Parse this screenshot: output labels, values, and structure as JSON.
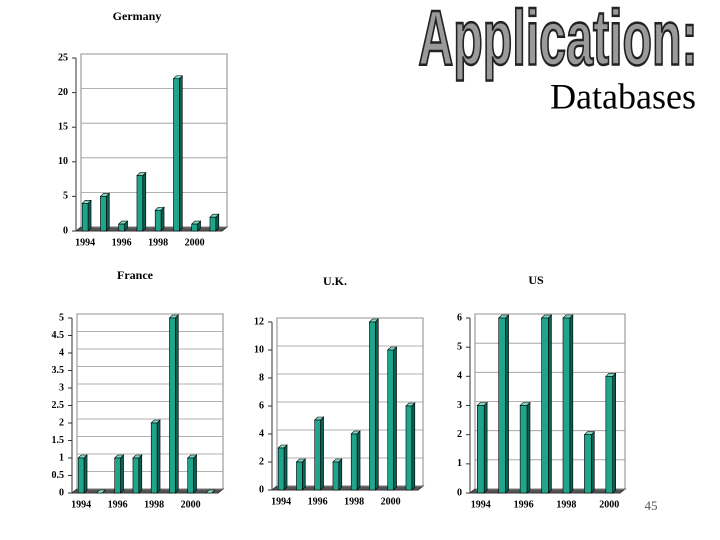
{
  "heading": "Application:",
  "subheading": "Databases",
  "page_number": "45",
  "chart_data": [
    {
      "type": "bar",
      "title": "Germany",
      "categories": [
        "1994",
        null,
        "1996",
        null,
        "1998",
        null,
        "2000",
        null
      ],
      "values": [
        4,
        5,
        1,
        8,
        3,
        22,
        1,
        2
      ],
      "color": "#1fa58c",
      "ylim": [
        0,
        25
      ],
      "yticks": [
        0,
        5,
        10,
        15,
        20,
        25
      ],
      "grid": true
    },
    {
      "type": "bar",
      "title": "France",
      "categories": [
        "1994",
        null,
        "1996",
        null,
        "1998",
        null,
        "2000",
        null
      ],
      "values": [
        1,
        0,
        1,
        1,
        2,
        5,
        1,
        0
      ],
      "color": "#1fa58c",
      "ylim": [
        0,
        5
      ],
      "yticks": [
        0,
        0.5,
        1,
        1.5,
        2,
        2.5,
        3,
        3.5,
        4,
        4.5,
        5
      ],
      "grid": true
    },
    {
      "type": "bar",
      "title": "U.K.",
      "categories": [
        "1994",
        null,
        "1996",
        null,
        "1998",
        null,
        "2000",
        null
      ],
      "values": [
        3,
        2,
        5,
        2,
        4,
        12,
        10,
        6
      ],
      "color": "#1fa58c",
      "ylim": [
        0,
        12
      ],
      "yticks": [
        0,
        2,
        4,
        6,
        8,
        10,
        12
      ],
      "grid": true
    },
    {
      "type": "bar",
      "title": "US",
      "categories": [
        "1994",
        null,
        "1996",
        null,
        "1998",
        null,
        "2000"
      ],
      "values": [
        3,
        6,
        3,
        6,
        6,
        2,
        4
      ],
      "color": "#1fa58c",
      "ylim": [
        0,
        6
      ],
      "yticks": [
        0,
        1,
        2,
        3,
        4,
        5,
        6
      ],
      "grid": true
    }
  ]
}
